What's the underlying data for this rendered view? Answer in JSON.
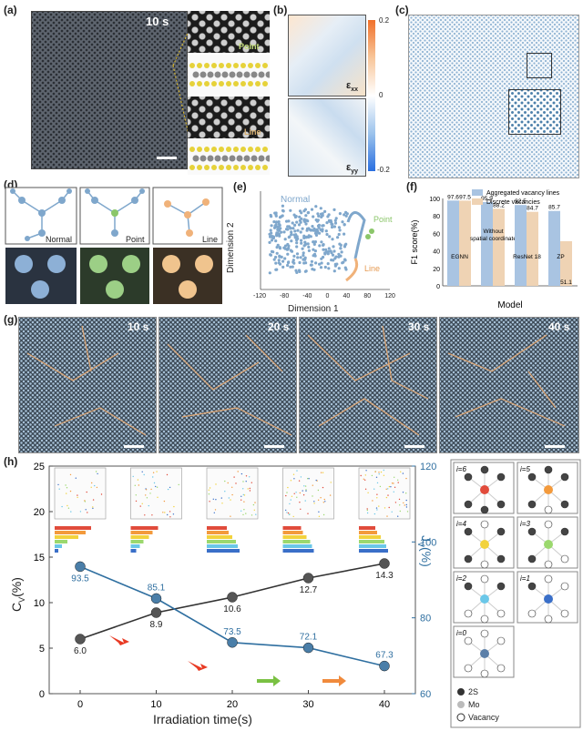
{
  "panels": {
    "a": {
      "label": "(a)",
      "time": "10 s",
      "point": "Point",
      "line": "Line"
    },
    "b": {
      "label": "(b)",
      "exx": "ε",
      "exx_sub": "xx",
      "eyy": "ε",
      "eyy_sub": "yy",
      "cbar_ticks": [
        "0.2",
        "0",
        "-0.2"
      ]
    },
    "c": {
      "label": "(c)"
    },
    "d": {
      "label": "(d)",
      "names": [
        "Normal",
        "Point",
        "Line"
      ]
    },
    "e": {
      "label": "(e)",
      "xlabel": "Dimension 1",
      "ylabel": "Dimension 2",
      "xticks": [
        "-120",
        "-80",
        "-40",
        "0",
        "40",
        "80",
        "120"
      ],
      "normal": "Normal",
      "point": "Point",
      "line": "Line"
    },
    "f": {
      "label": "(f)",
      "ylabel": "F1 score(%)",
      "xlabel": "Model",
      "yticks": [
        "100",
        "80",
        "60",
        "40",
        "20",
        "0"
      ]
    },
    "g": {
      "label": "(g)",
      "times": [
        "10 s",
        "20 s",
        "30 s",
        "40 s"
      ]
    },
    "h": {
      "label": "(h)",
      "xlabel": "Irradiation time(s)",
      "ylabel_left": "C",
      "ylabel_left_sub": "V",
      "ylabel_left_unit": "(%)",
      "ylabel_right": "J",
      "ylabel_right_sub": "V",
      "ylabel_right_unit": "(%)",
      "yticks_left": [
        "25",
        "20",
        "15",
        "10",
        "5",
        "0"
      ],
      "yticks_right": [
        "120",
        "100",
        "80",
        "60"
      ],
      "xticks": [
        "0",
        "10",
        "20",
        "30",
        "40"
      ]
    },
    "legend": {
      "items": [
        "i=6",
        "i=5",
        "i=4",
        "i=3",
        "i=2",
        "i=1",
        "i=0"
      ],
      "keys": [
        "2S",
        "Mo",
        "Vacancy"
      ]
    }
  },
  "chart_data": [
    {
      "type": "bar",
      "title": "",
      "categories": [
        "EGNN",
        "Without spatial coordinate",
        "ResNet 18",
        "ZP"
      ],
      "series": [
        {
          "name": "Aggregated vacancy lines",
          "values": [
            97.6,
            95.9,
            92.5,
            85.7
          ],
          "color": "#a9c4e2"
        },
        {
          "name": "Discrete vacancies",
          "values": [
            97.5,
            88.2,
            84.7,
            51.1
          ],
          "color": "#efd3b4"
        }
      ],
      "ylim": [
        0,
        100
      ],
      "xlabel": "Model",
      "ylabel": "F1 score(%)",
      "legend": "top-right"
    },
    {
      "type": "line",
      "x": [
        0,
        10,
        20,
        30,
        40
      ],
      "series": [
        {
          "name": "Cv",
          "values": [
            6.0,
            8.9,
            10.6,
            12.7,
            14.3
          ],
          "axis": "left",
          "color": "#333333"
        },
        {
          "name": "Jv",
          "values": [
            93.5,
            85.1,
            73.5,
            72.1,
            67.3
          ],
          "axis": "right",
          "color": "#2f6fa0"
        }
      ],
      "ylim_left": [
        0,
        25
      ],
      "ylim_right": [
        60,
        120
      ],
      "xlabel": "Irradiation time(s)",
      "grid": false
    }
  ]
}
